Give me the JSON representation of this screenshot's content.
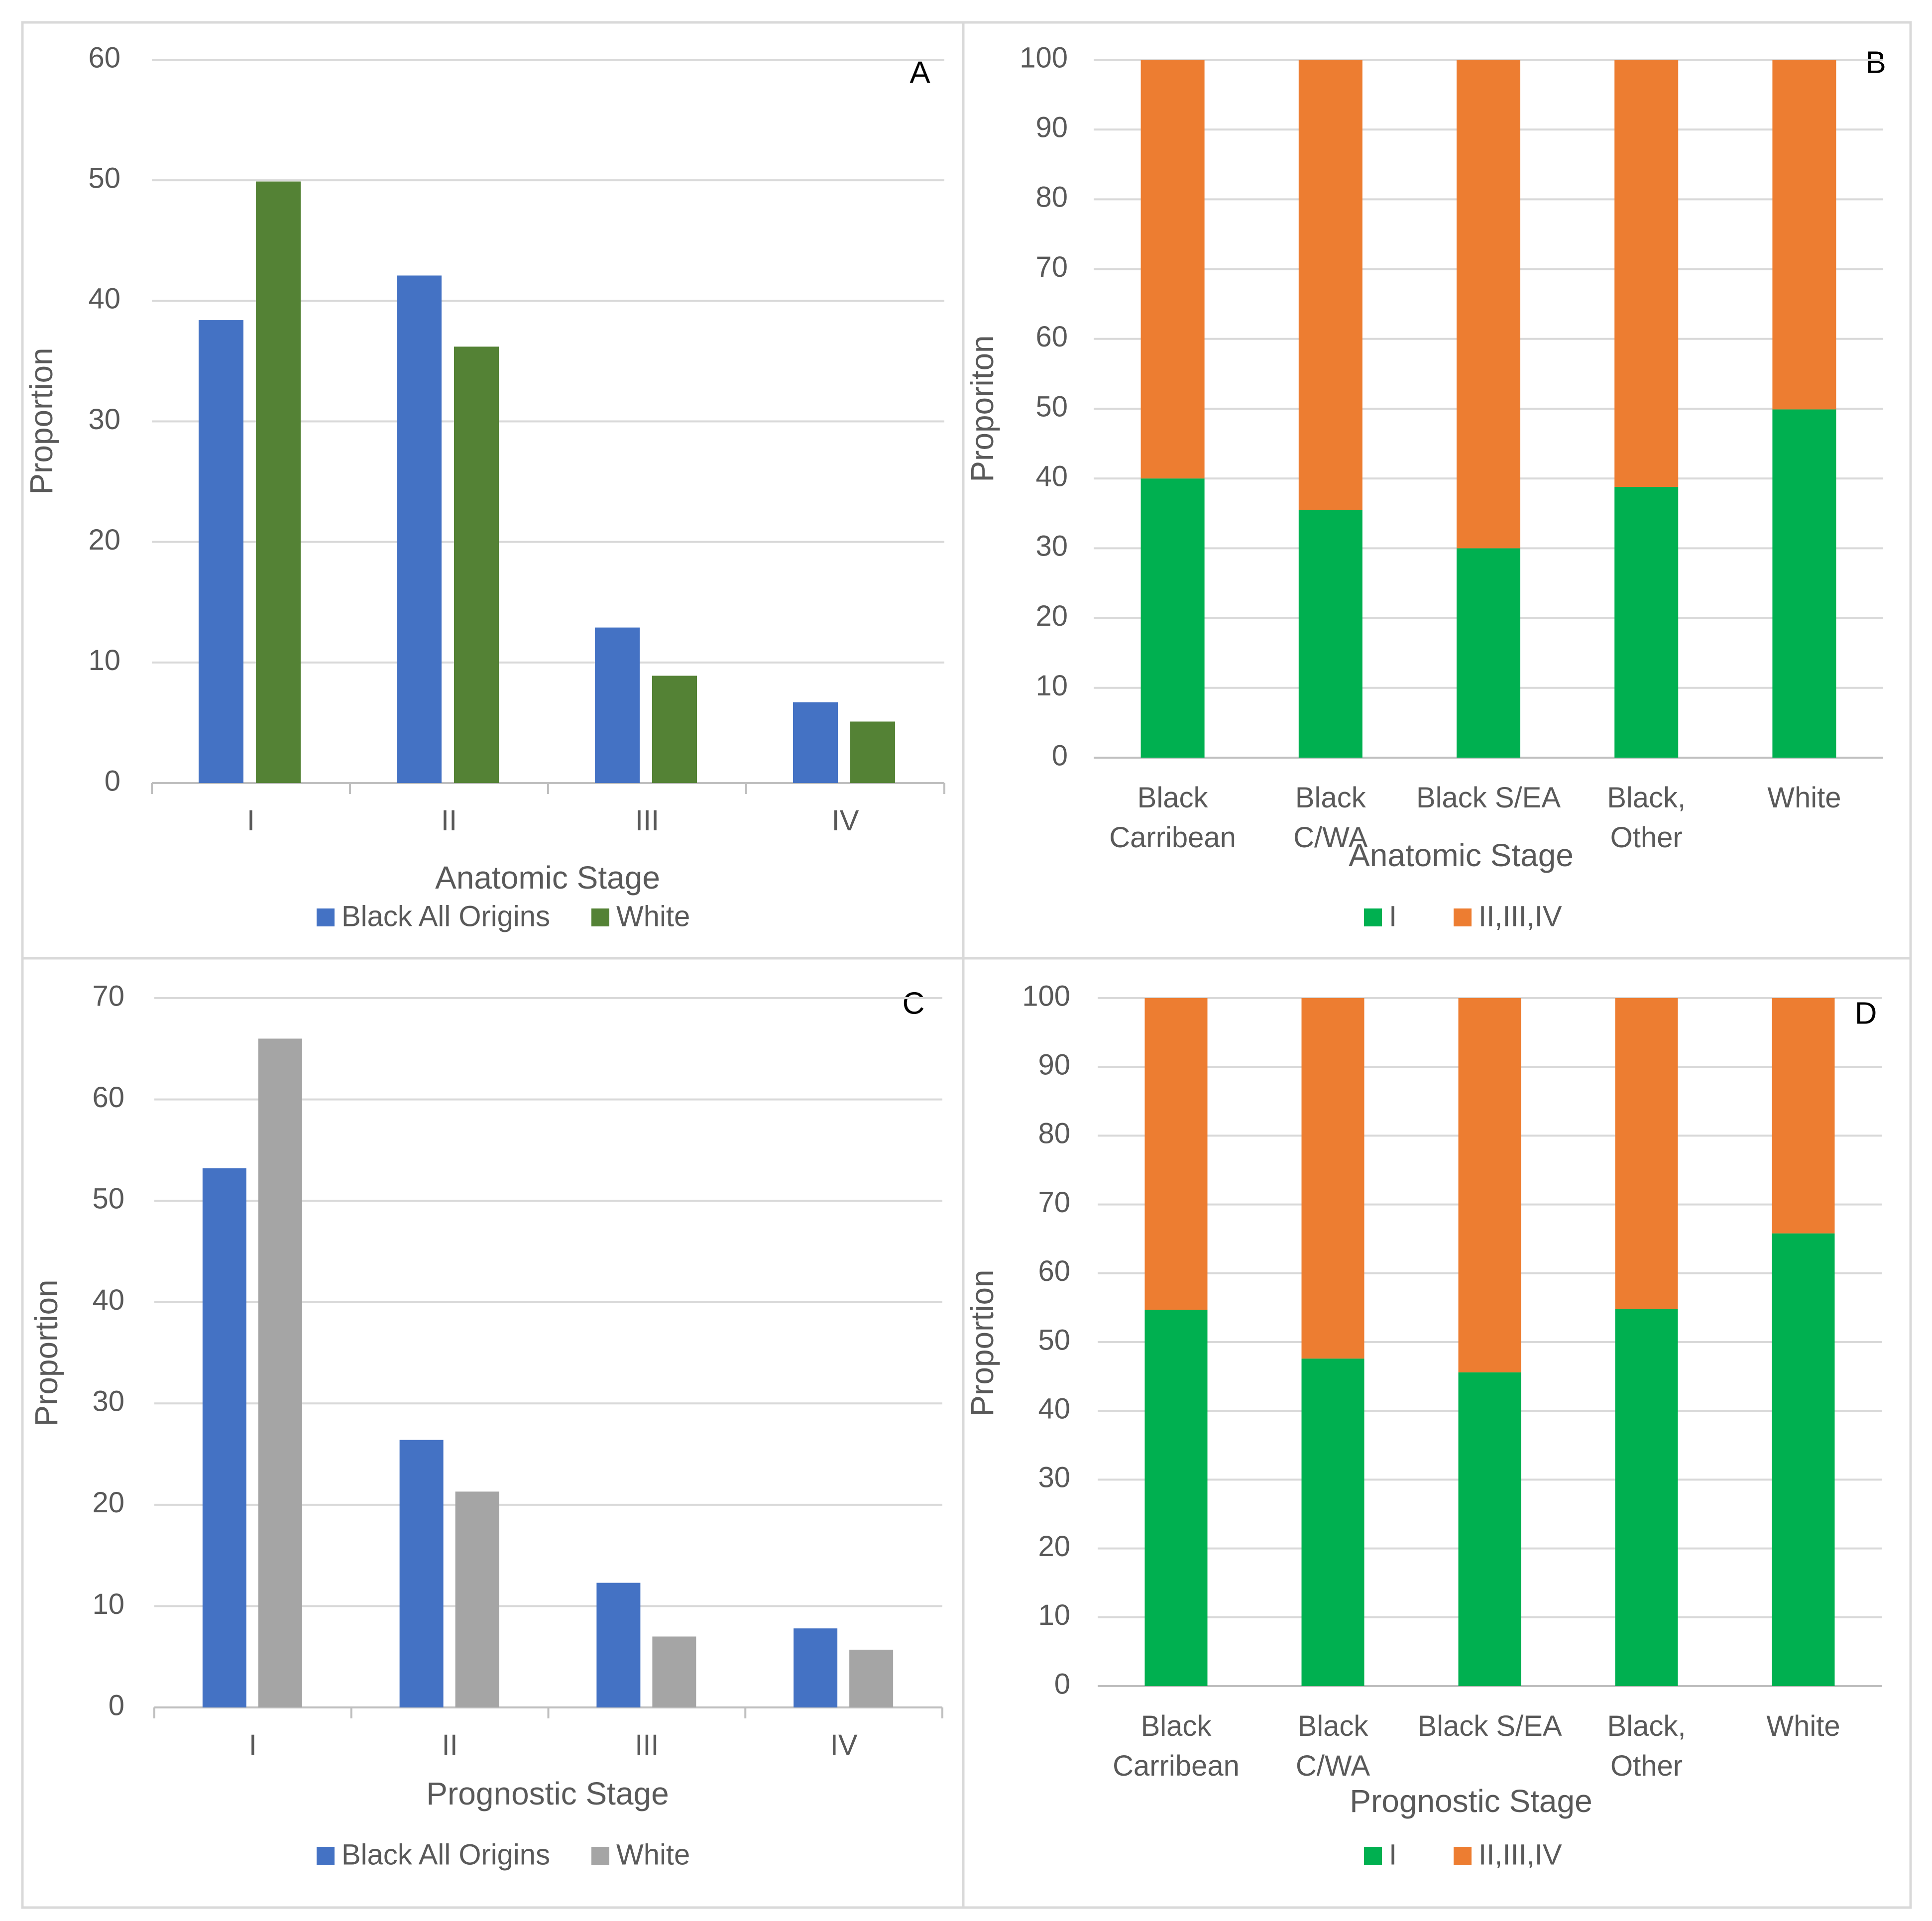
{
  "chart_data": [
    {
      "panel": "A",
      "type": "bar",
      "categories": [
        "I",
        "II",
        "III",
        "IV"
      ],
      "series": [
        {
          "name": "Black All Origins",
          "values": [
            38.4,
            42.1,
            12.9,
            6.7
          ]
        },
        {
          "name": "White",
          "values": [
            49.9,
            36.2,
            8.9,
            5.1
          ]
        }
      ],
      "colors": [
        "#4472C4",
        "#548235"
      ],
      "xlabel": "Anatomic Stage",
      "ylabel": "Proportion",
      "ylim": [
        0,
        60
      ],
      "yticks": [
        0,
        10,
        20,
        30,
        40,
        50,
        60
      ],
      "grid": true,
      "legend": "bottom"
    },
    {
      "panel": "B",
      "type": "bar",
      "stacked": true,
      "categories": [
        [
          "Black",
          "Carribean"
        ],
        [
          "Black",
          "C/WA"
        ],
        [
          "Black S/EA"
        ],
        [
          "Black,",
          "Other"
        ],
        [
          "White"
        ]
      ],
      "series": [
        {
          "name": "I",
          "values": [
            40,
            35.5,
            30,
            38.8,
            49.9
          ]
        },
        {
          "name": "II,III,IV",
          "values": [
            60,
            64.5,
            70,
            61.2,
            50.1
          ]
        }
      ],
      "colors": [
        "#00B050",
        "#ED7D31"
      ],
      "xlabel": "Anatomic Stage",
      "ylabel": "Proporiton",
      "ylim": [
        0,
        100
      ],
      "yticks": [
        0,
        10,
        20,
        30,
        40,
        50,
        60,
        70,
        80,
        90,
        100
      ],
      "grid": true,
      "legend": "bottom"
    },
    {
      "panel": "C",
      "type": "bar",
      "categories": [
        "I",
        "II",
        "III",
        "IV"
      ],
      "series": [
        {
          "name": "Black All Origins",
          "values": [
            53.2,
            26.4,
            12.3,
            7.8
          ]
        },
        {
          "name": "White",
          "values": [
            66,
            21.3,
            7,
            5.7
          ]
        }
      ],
      "colors": [
        "#4472C4",
        "#A5A5A5"
      ],
      "xlabel": "Prognostic Stage",
      "ylabel": "Proportion",
      "ylim": [
        0,
        70
      ],
      "yticks": [
        0,
        10,
        20,
        30,
        40,
        50,
        60,
        70
      ],
      "grid": true,
      "legend": "bottom"
    },
    {
      "panel": "D",
      "type": "bar",
      "stacked": true,
      "categories": [
        [
          "Black",
          "Carribean"
        ],
        [
          "Black",
          "C/WA"
        ],
        [
          "Black S/EA"
        ],
        [
          "Black,",
          "Other"
        ],
        [
          "White"
        ]
      ],
      "series": [
        {
          "name": "I",
          "values": [
            54.7,
            47.6,
            45.6,
            54.8,
            65.8
          ]
        },
        {
          "name": "II,III,IV",
          "values": [
            45.3,
            52.4,
            54.4,
            45.2,
            34.2
          ]
        }
      ],
      "colors": [
        "#00B050",
        "#ED7D31"
      ],
      "xlabel": "Prognostic Stage",
      "ylabel": "Proportion",
      "ylim": [
        0,
        100
      ],
      "yticks": [
        0,
        10,
        20,
        30,
        40,
        50,
        60,
        70,
        80,
        90,
        100
      ],
      "grid": true,
      "legend": "bottom"
    }
  ]
}
